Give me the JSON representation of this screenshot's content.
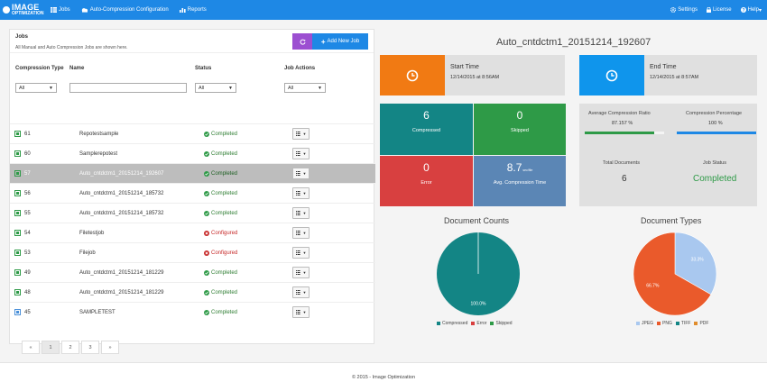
{
  "nav": {
    "brand_top": "IMAGE",
    "brand_bottom": "OPTIMIZATION",
    "jobs": "Jobs",
    "auto_config": "Auto-Compression Configuration",
    "reports": "Reports",
    "settings": "Settings",
    "license": "License",
    "help": "Help"
  },
  "jobs_panel": {
    "title": "Jobs",
    "subtitle": "All Manual and Auto Compression Jobs are shown here.",
    "add_button": "Add New Job",
    "columns": {
      "type": "Compression Type",
      "name": "Name",
      "status": "Status",
      "actions": "Job Actions"
    },
    "filters": {
      "type": "All",
      "status": "All",
      "actions": "All"
    },
    "rows": [
      {
        "id": "61",
        "name": "Repotestsample",
        "status": "Completed",
        "state": "completed",
        "type": "manual"
      },
      {
        "id": "60",
        "name": "Samplerepotest",
        "status": "Completed",
        "state": "completed",
        "type": "manual"
      },
      {
        "id": "57",
        "name": "Auto_cntdctm1_20151214_192607",
        "status": "Completed",
        "state": "completed",
        "type": "manual",
        "selected": true
      },
      {
        "id": "56",
        "name": "Auto_cntdctm1_20151214_185732",
        "status": "Completed",
        "state": "completed",
        "type": "manual"
      },
      {
        "id": "55",
        "name": "Auto_cntdctm1_20151214_185732",
        "status": "Completed",
        "state": "completed",
        "type": "manual"
      },
      {
        "id": "54",
        "name": "Filetestjob",
        "status": "Configured",
        "state": "configured",
        "type": "manual"
      },
      {
        "id": "53",
        "name": "Filejob",
        "status": "Configured",
        "state": "configured",
        "type": "manual"
      },
      {
        "id": "49",
        "name": "Auto_cntdctm1_20151214_181229",
        "status": "Completed",
        "state": "completed",
        "type": "manual"
      },
      {
        "id": "48",
        "name": "Auto_cntdctm1_20151214_181229",
        "status": "Completed",
        "state": "completed",
        "type": "manual"
      },
      {
        "id": "45",
        "name": "SAMPLETEST",
        "status": "Completed",
        "state": "completed",
        "type": "auto"
      }
    ],
    "pagination": [
      "«",
      "1",
      "2",
      "3",
      "»"
    ],
    "active_page": "1"
  },
  "details": {
    "title": "Auto_cntdctm1_20151214_192607",
    "start_label": "Start Time",
    "start_value": "12/14/2015 at 8:56AM",
    "end_label": "End Time",
    "end_value": "12/14/2015 at 8:57AM",
    "compressed_value": "6",
    "compressed_label": "Compressed",
    "skipped_value": "0",
    "skipped_label": "Skipped",
    "error_value": "0",
    "error_label": "Error",
    "avg_time_value": "8.7",
    "avg_time_unit": "sec/file",
    "avg_time_label": "Avg. Compression Time",
    "avg_ratio_label": "Average Compression Ratio",
    "avg_ratio_value": "87.157 %",
    "avg_ratio_fraction": 0.87157,
    "comp_pct_label": "Compression Percentage",
    "comp_pct_value": "100 %",
    "comp_pct_fraction": 1.0,
    "total_docs_label": "Total Documents",
    "total_docs_value": "6",
    "job_status_label": "Job Status",
    "job_status_value": "Completed"
  },
  "chart_data": [
    {
      "type": "pie",
      "title": "Document Counts",
      "categories": [
        "Compressed",
        "Error",
        "Skipped"
      ],
      "values": [
        100.0,
        0.0,
        0.0
      ],
      "slice_labels": [
        "100.0%",
        "",
        ""
      ],
      "colors": [
        "#138585",
        "#d84040",
        "#2e9a47"
      ],
      "legend": "bottom"
    },
    {
      "type": "pie",
      "title": "Document Types",
      "categories": [
        "JPEG",
        "PNG",
        "TIFF",
        "PDF"
      ],
      "values": [
        33.3,
        66.7,
        0.0,
        0.0
      ],
      "slice_labels": [
        "33.3%",
        "66.7%",
        "",
        ""
      ],
      "colors": [
        "#a9c8ef",
        "#ea5a2b",
        "#138585",
        "#e08d2d"
      ],
      "legend": "bottom"
    }
  ],
  "footer": "© 2015 - Image Optimization",
  "colors": {
    "nav": "#1e88e5",
    "start_tile": "#f17a13",
    "end_tile": "#0f95ec",
    "compressed": "#138585",
    "skipped": "#2e9a47",
    "error": "#d84040",
    "avg_time": "#5b86b5",
    "status_completed": "#2e7d32"
  }
}
